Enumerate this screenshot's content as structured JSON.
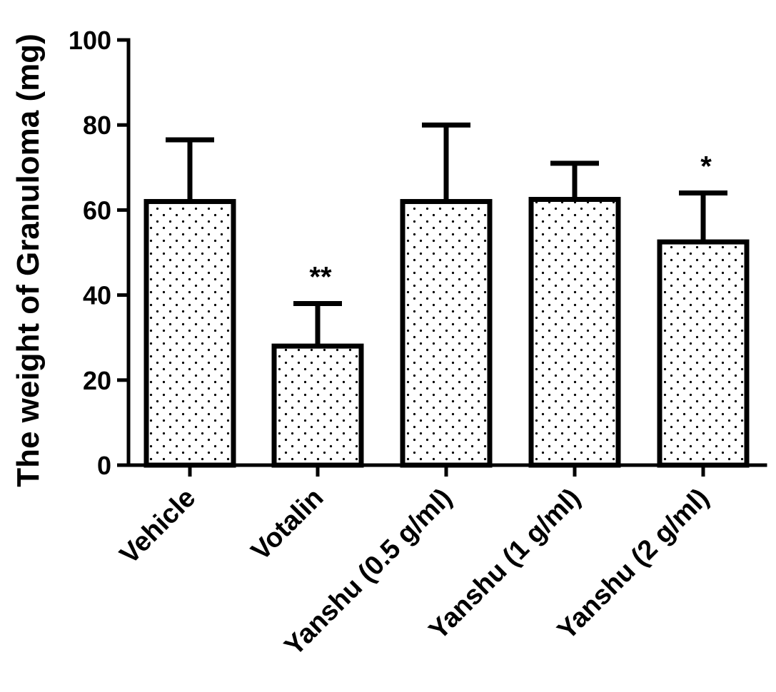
{
  "chart_data": {
    "type": "bar",
    "ylabel": "The weight of Granuloma (mg)",
    "xlabel": "",
    "ylim": [
      0,
      100
    ],
    "yticks": [
      0,
      20,
      40,
      60,
      80,
      100
    ],
    "grid": false,
    "categories": [
      "Vehicle",
      "Votalin",
      "Yanshu (0.5 g/ml)",
      "Yanshu (1 g/ml)",
      "Yanshu (2 g/ml)"
    ],
    "values": [
      62,
      28,
      62,
      62.5,
      52.5
    ],
    "errors": [
      14.5,
      10,
      18,
      8.5,
      11.5
    ],
    "significance": [
      "",
      "**",
      "",
      "",
      "*"
    ],
    "bar_fill": "dotted pattern",
    "colors": {
      "stroke": "#000000",
      "fill": "#ffffff"
    }
  }
}
